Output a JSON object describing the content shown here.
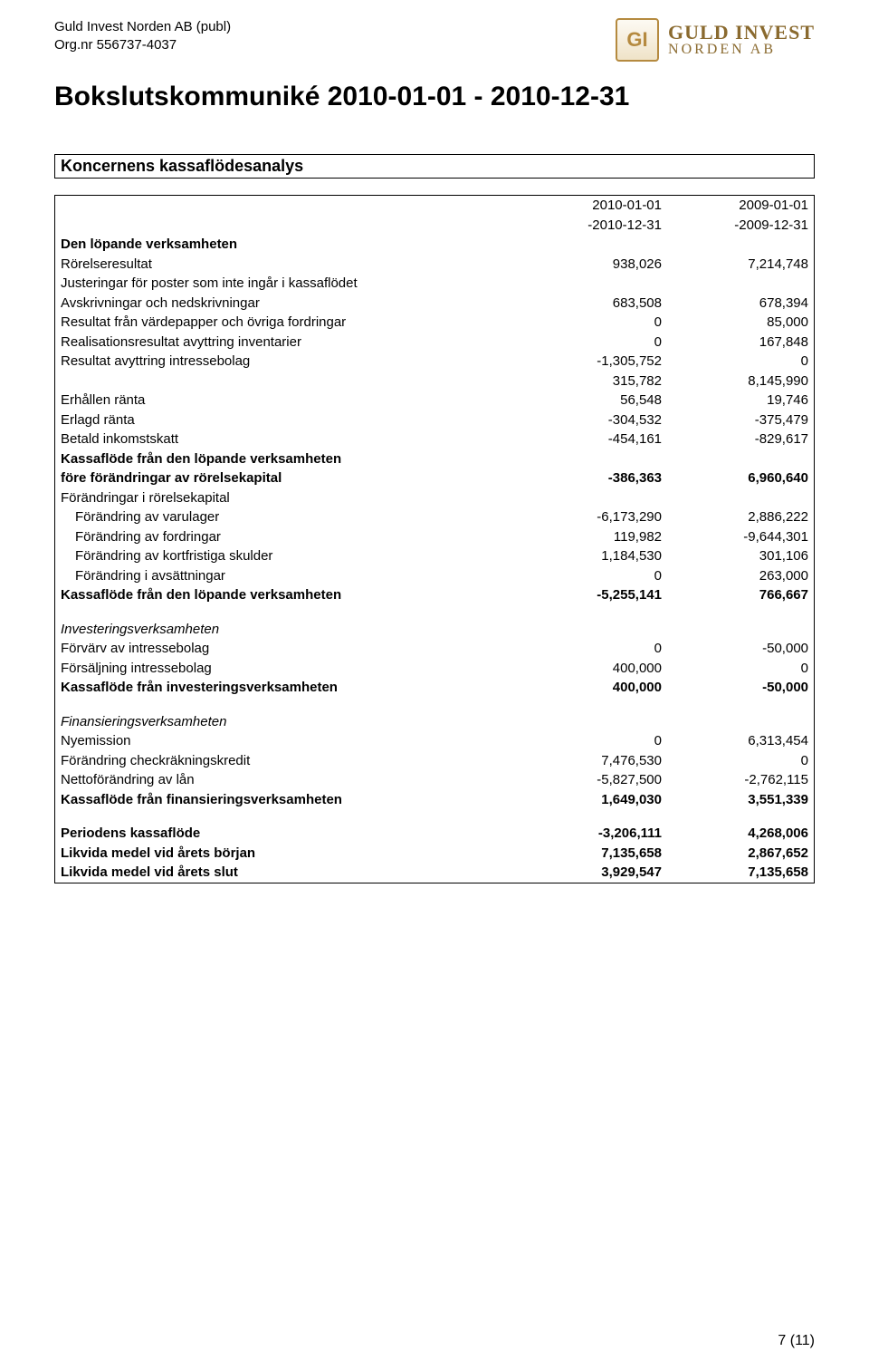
{
  "header": {
    "company_name": "Guld Invest Norden AB (publ)",
    "org_line": "Org.nr 556737-4037",
    "logo_top": "GULD INVEST",
    "logo_sub": "NORDEN AB",
    "logo_initials": "GI"
  },
  "title": "Bokslutskommuniké 2010-01-01 - 2010-12-31",
  "section_title": "Koncernens kassaflödesanalys",
  "columns": {
    "c1a": "2010-01-01",
    "c1b": "-2010-12-31",
    "c2a": "2009-01-01",
    "c2b": "-2009-12-31"
  },
  "rows": [
    {
      "label": "Den löpande verksamheten",
      "c1": "",
      "c2": "",
      "bold": true
    },
    {
      "label": "Rörelseresultat",
      "c1": "938,026",
      "c2": "7,214,748"
    },
    {
      "label": "Justeringar för poster som inte ingår i kassaflödet",
      "c1": "",
      "c2": ""
    },
    {
      "label": "Avskrivningar och nedskrivningar",
      "c1": "683,508",
      "c2": "678,394"
    },
    {
      "label": "Resultat från värdepapper och övriga fordringar",
      "c1": "0",
      "c2": "85,000"
    },
    {
      "label": "Realisationsresultat avyttring inventarier",
      "c1": "0",
      "c2": "167,848"
    },
    {
      "label": "Resultat avyttring intressebolag",
      "c1": "-1,305,752",
      "c2": "0"
    },
    {
      "label": "",
      "c1": "315,782",
      "c2": "8,145,990"
    },
    {
      "label": "Erhållen ränta",
      "c1": "56,548",
      "c2": "19,746"
    },
    {
      "label": "Erlagd ränta",
      "c1": "-304,532",
      "c2": "-375,479"
    },
    {
      "label": "Betald inkomstskatt",
      "c1": "-454,161",
      "c2": "-829,617"
    },
    {
      "label": "Kassaflöde från den löpande verksamheten",
      "c1": "",
      "c2": "",
      "bold": true
    },
    {
      "label": "före förändringar av rörelsekapital",
      "c1": "-386,363",
      "c2": "6,960,640",
      "bold": true
    },
    {
      "label": "Förändringar i rörelsekapital",
      "c1": "",
      "c2": ""
    },
    {
      "label": "Förändring av varulager",
      "c1": "-6,173,290",
      "c2": "2,886,222",
      "indent": true
    },
    {
      "label": "Förändring av fordringar",
      "c1": "119,982",
      "c2": "-9,644,301",
      "indent": true
    },
    {
      "label": "Förändring av kortfristiga skulder",
      "c1": "1,184,530",
      "c2": "301,106",
      "indent": true
    },
    {
      "label": "Förändring i avsättningar",
      "c1": "0",
      "c2": "263,000",
      "indent": true
    },
    {
      "label": "Kassaflöde från den löpande verksamheten",
      "c1": "-5,255,141",
      "c2": "766,667",
      "bold": true
    },
    {
      "spacer": true
    },
    {
      "label": "Investeringsverksamheten",
      "c1": "",
      "c2": "",
      "italic": true
    },
    {
      "label": "Förvärv av intressebolag",
      "c1": "0",
      "c2": "-50,000"
    },
    {
      "label": "Försäljning intressebolag",
      "c1": "400,000",
      "c2": "0"
    },
    {
      "label": "Kassaflöde från investeringsverksamheten",
      "c1": "400,000",
      "c2": "-50,000",
      "bold": true
    },
    {
      "spacer": true
    },
    {
      "label": "Finansieringsverksamheten",
      "c1": "",
      "c2": "",
      "italic": true
    },
    {
      "label": "Nyemission",
      "c1": "0",
      "c2": "6,313,454"
    },
    {
      "label": "Förändring checkräkningskredit",
      "c1": "7,476,530",
      "c2": "0"
    },
    {
      "label": "Nettoförändring av lån",
      "c1": "-5,827,500",
      "c2": "-2,762,115"
    },
    {
      "label": "Kassaflöde från finansieringsverksamheten",
      "c1": "1,649,030",
      "c2": "3,551,339",
      "bold": true
    },
    {
      "spacer": true
    },
    {
      "label": "Periodens kassaflöde",
      "c1": "-3,206,111",
      "c2": "4,268,006",
      "bold": true
    },
    {
      "label": "Likvida medel vid årets början",
      "c1": "7,135,658",
      "c2": "2,867,652",
      "bold": true
    },
    {
      "label": "Likvida medel vid årets slut",
      "c1": "3,929,547",
      "c2": "7,135,658",
      "bold": true
    }
  ],
  "footer": {
    "page": "7",
    "total": "(11)"
  }
}
